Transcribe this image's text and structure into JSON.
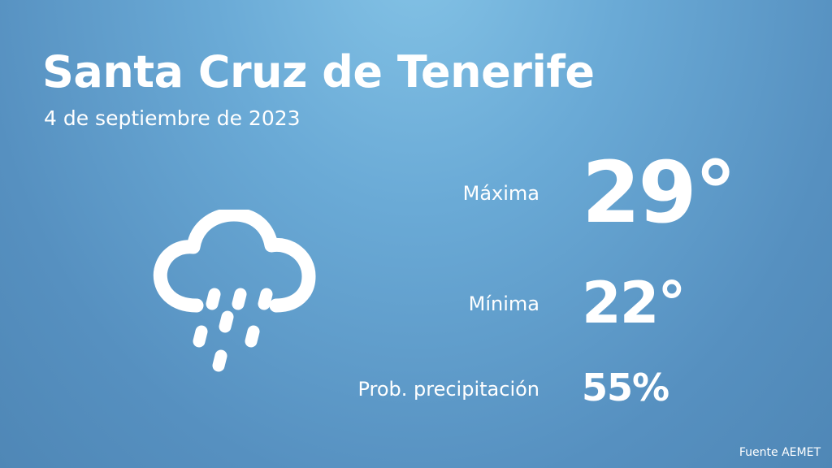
{
  "city": "Santa Cruz de Tenerife",
  "date": "4 de septiembre de 2023",
  "weather_icon": "cloud-rain-icon",
  "max": {
    "label": "Máxima",
    "value": "29°"
  },
  "min": {
    "label": "Mínima",
    "value": "22°"
  },
  "precipitation": {
    "label": "Prob. precipitación",
    "value": "55%"
  },
  "source": "Fuente AEMET",
  "colors": {
    "background_top": "#84c3e6",
    "background_bottom": "#4f87b6",
    "text": "#ffffff"
  }
}
